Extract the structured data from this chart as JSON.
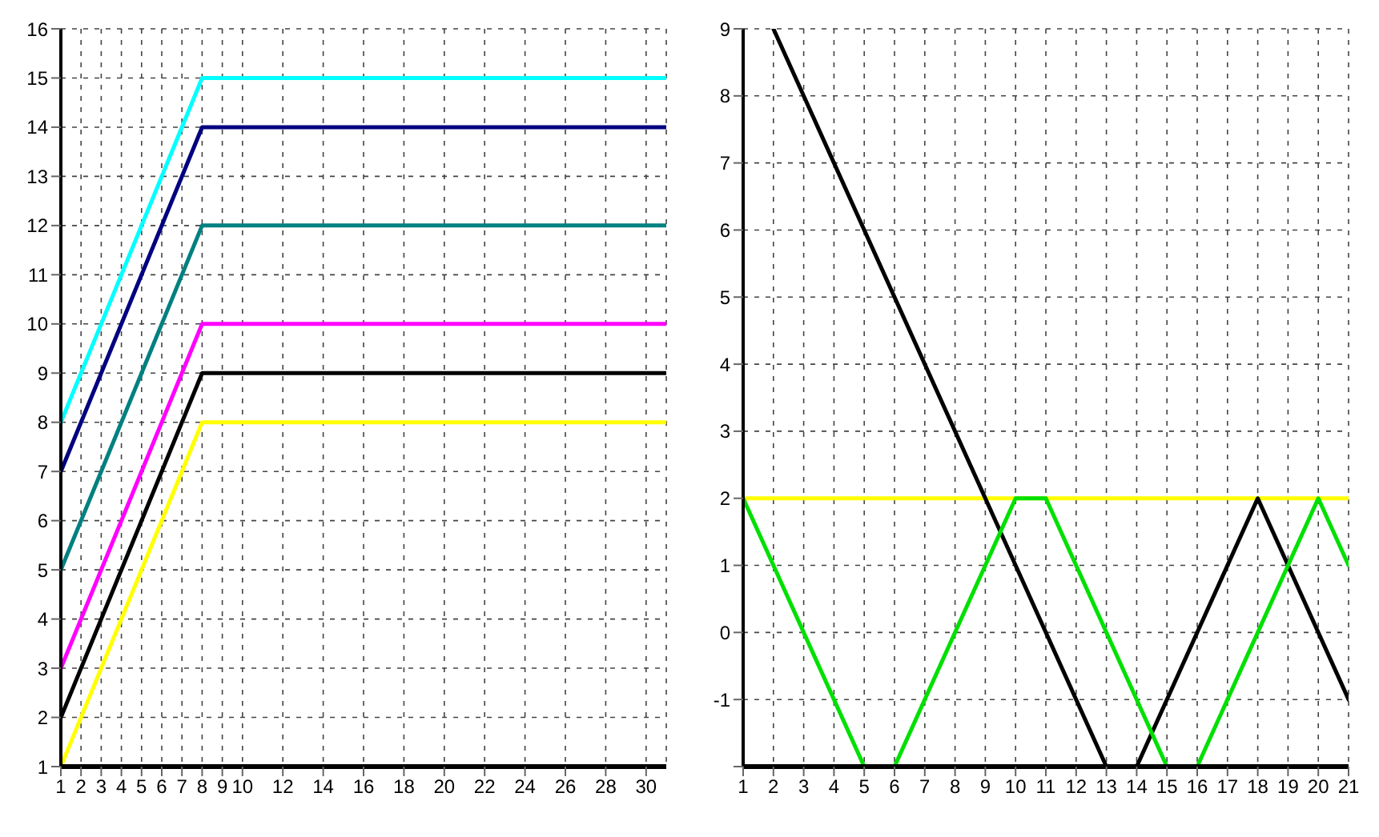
{
  "chart_data": [
    {
      "type": "line",
      "xlim": [
        1,
        31
      ],
      "xticks": [
        1,
        2,
        3,
        4,
        5,
        6,
        7,
        8,
        9,
        10,
        12,
        14,
        16,
        18,
        20,
        22,
        24,
        26,
        28,
        30
      ],
      "ylim": [
        1,
        16
      ],
      "yticks": [
        1,
        2,
        3,
        4,
        5,
        6,
        7,
        8,
        9,
        10,
        11,
        12,
        13,
        14,
        15,
        16
      ],
      "grid": true,
      "legend": false,
      "marker": "none",
      "line_style": "solid",
      "series": [
        {
          "color": "#00ffff",
          "x": [
            1,
            8,
            31
          ],
          "values": [
            8,
            15,
            15
          ]
        },
        {
          "color": "#000080",
          "x": [
            1,
            8,
            31
          ],
          "values": [
            7,
            14,
            14
          ]
        },
        {
          "color": "#008080",
          "x": [
            1,
            8,
            31
          ],
          "values": [
            5,
            12,
            12
          ]
        },
        {
          "color": "#ff00ff",
          "x": [
            1,
            8,
            31
          ],
          "values": [
            3,
            10,
            10
          ]
        },
        {
          "color": "#000000",
          "x": [
            1,
            8,
            31
          ],
          "values": [
            2,
            9,
            9
          ]
        },
        {
          "color": "#ffff00",
          "x": [
            1,
            8,
            31
          ],
          "values": [
            1,
            8,
            8
          ]
        }
      ]
    },
    {
      "type": "line",
      "xlim": [
        1,
        21
      ],
      "xticks": [
        1,
        2,
        3,
        4,
        5,
        6,
        7,
        8,
        9,
        10,
        11,
        12,
        13,
        14,
        15,
        16,
        17,
        18,
        19,
        20,
        21
      ],
      "ylim": [
        -2,
        9
      ],
      "yticks": [
        {
          "value": -2,
          "label": null
        },
        -1,
        0,
        1,
        2,
        3,
        4,
        5,
        6,
        7,
        8,
        9
      ],
      "grid": true,
      "legend": false,
      "marker": "none",
      "line_style": "solid",
      "series": [
        {
          "color": "#ffff00",
          "x": [
            1,
            21
          ],
          "values": [
            2,
            2
          ]
        },
        {
          "color": "#000000",
          "x": [
            2,
            13,
            14,
            18,
            21
          ],
          "values": [
            9,
            -2,
            -2,
            2,
            -1
          ]
        },
        {
          "color": "#00e000",
          "x": [
            1,
            5,
            6,
            10,
            11,
            15,
            16,
            20,
            21
          ],
          "values": [
            2,
            -2,
            -2,
            2,
            2,
            -2,
            -2,
            2,
            1
          ]
        }
      ]
    }
  ]
}
